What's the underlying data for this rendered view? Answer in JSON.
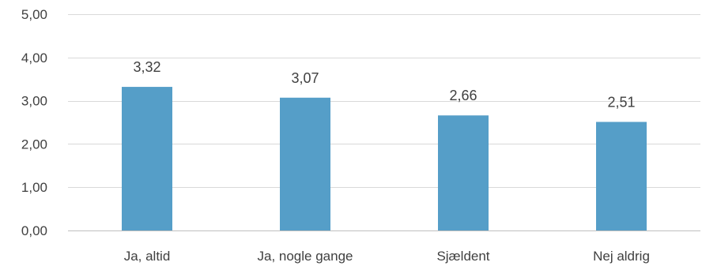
{
  "chart_data": {
    "type": "bar",
    "title": "",
    "xlabel": "",
    "ylabel": "",
    "categories": [
      "Ja, altid",
      "Ja, nogle gange",
      "Sjældent",
      "Nej aldrig"
    ],
    "values": [
      3.32,
      3.07,
      2.66,
      2.51
    ],
    "value_labels": [
      "3,32",
      "3,07",
      "2,66",
      "2,51"
    ],
    "ylim": [
      0,
      5
    ],
    "yticks": [
      0,
      1,
      2,
      3,
      4,
      5
    ],
    "ytick_labels": [
      "0,00",
      "1,00",
      "2,00",
      "3,00",
      "4,00",
      "5,00"
    ],
    "bar_color": "#559ec8",
    "grid": true,
    "legend": "none"
  }
}
